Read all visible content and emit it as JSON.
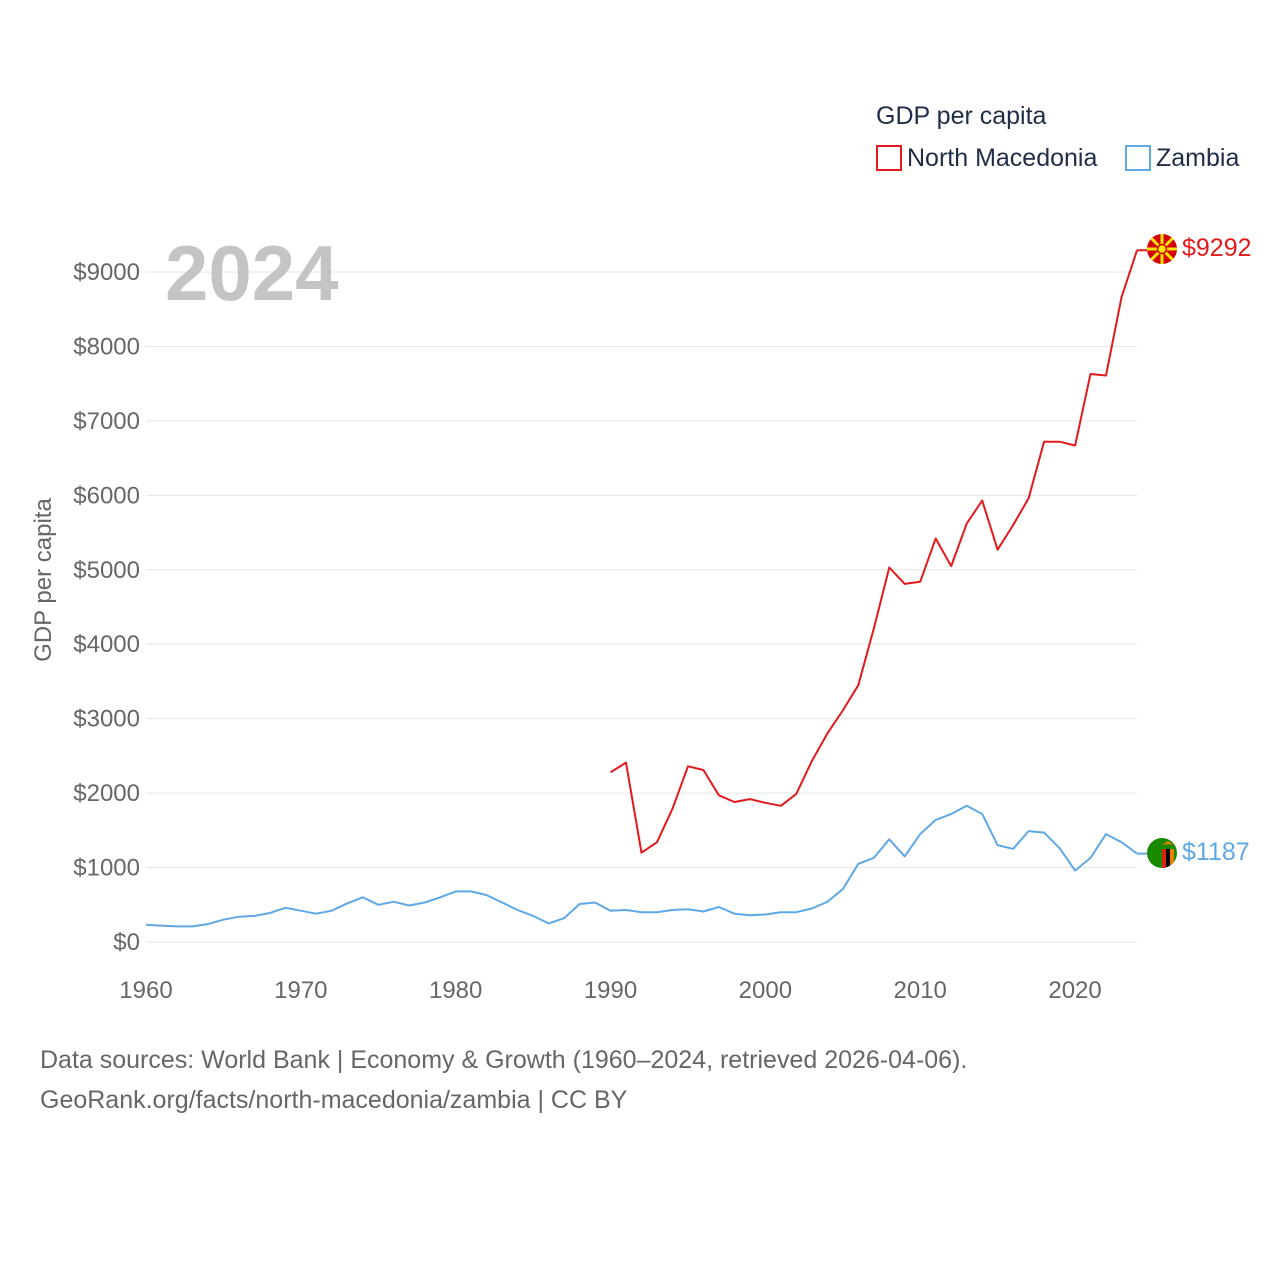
{
  "chart_data": {
    "type": "line",
    "title": "",
    "year_label": "2024",
    "xlabel": "",
    "ylabel": "GDP per capita",
    "xlim": [
      1960,
      2024
    ],
    "ylim": [
      0,
      9500
    ],
    "x_ticks": [
      1960,
      1970,
      1980,
      1990,
      2000,
      2010,
      2020
    ],
    "y_ticks": [
      {
        "value": 0,
        "label": "$0"
      },
      {
        "value": 1000,
        "label": "$1000"
      },
      {
        "value": 2000,
        "label": "$2000"
      },
      {
        "value": 3000,
        "label": "$3000"
      },
      {
        "value": 4000,
        "label": "$4000"
      },
      {
        "value": 5000,
        "label": "$5000"
      },
      {
        "value": 6000,
        "label": "$6000"
      },
      {
        "value": 7000,
        "label": "$7000"
      },
      {
        "value": 8000,
        "label": "$8000"
      },
      {
        "value": 9000,
        "label": "$9000"
      }
    ],
    "legend": {
      "title": "GDP per capita",
      "position": "top-right"
    },
    "series": [
      {
        "name": "North Macedonia",
        "color": "#e31a1c",
        "end_label": "$9292",
        "flag_icon": "north-macedonia-flag-icon",
        "x": [
          1990,
          1991,
          1992,
          1993,
          1994,
          1995,
          1996,
          1997,
          1998,
          1999,
          2000,
          2001,
          2002,
          2003,
          2004,
          2005,
          2006,
          2007,
          2008,
          2009,
          2010,
          2011,
          2012,
          2013,
          2014,
          2015,
          2016,
          2017,
          2018,
          2019,
          2020,
          2021,
          2022,
          2023,
          2024
        ],
        "values": [
          2280,
          2410,
          1200,
          1340,
          1790,
          2360,
          2310,
          1970,
          1880,
          1920,
          1870,
          1830,
          1990,
          2430,
          2800,
          3110,
          3450,
          4210,
          5030,
          4810,
          4840,
          5420,
          5050,
          5620,
          5930,
          5270,
          5600,
          5960,
          6720,
          6720,
          6670,
          7630,
          7610,
          8660,
          9292
        ]
      },
      {
        "name": "Zambia",
        "color": "#5fa8e6",
        "end_label": "$1187",
        "flag_icon": "zambia-flag-icon",
        "x": [
          1960,
          1961,
          1962,
          1963,
          1964,
          1965,
          1966,
          1967,
          1968,
          1969,
          1970,
          1971,
          1972,
          1973,
          1974,
          1975,
          1976,
          1977,
          1978,
          1979,
          1980,
          1981,
          1982,
          1983,
          1984,
          1985,
          1986,
          1987,
          1988,
          1989,
          1990,
          1991,
          1992,
          1993,
          1994,
          1995,
          1996,
          1997,
          1998,
          1999,
          2000,
          2001,
          2002,
          2003,
          2004,
          2005,
          2006,
          2007,
          2008,
          2009,
          2010,
          2011,
          2012,
          2013,
          2014,
          2015,
          2016,
          2017,
          2018,
          2019,
          2020,
          2021,
          2022,
          2023,
          2024
        ],
        "values": [
          230,
          220,
          210,
          210,
          240,
          300,
          340,
          350,
          390,
          460,
          420,
          380,
          420,
          520,
          600,
          500,
          540,
          490,
          530,
          600,
          680,
          680,
          630,
          530,
          430,
          350,
          250,
          320,
          510,
          530,
          420,
          430,
          400,
          400,
          430,
          440,
          410,
          470,
          380,
          360,
          370,
          400,
          400,
          450,
          540,
          710,
          1050,
          1130,
          1380,
          1150,
          1450,
          1640,
          1720,
          1830,
          1720,
          1300,
          1250,
          1490,
          1470,
          1260,
          960,
          1130,
          1450,
          1340,
          1187
        ]
      }
    ]
  },
  "footer": {
    "line1": "Data sources: World Bank | Economy & Growth (1960–2024, retrieved 2026-04-06).",
    "line2": "GeoRank.org/facts/north-macedonia/zambia | CC BY"
  }
}
